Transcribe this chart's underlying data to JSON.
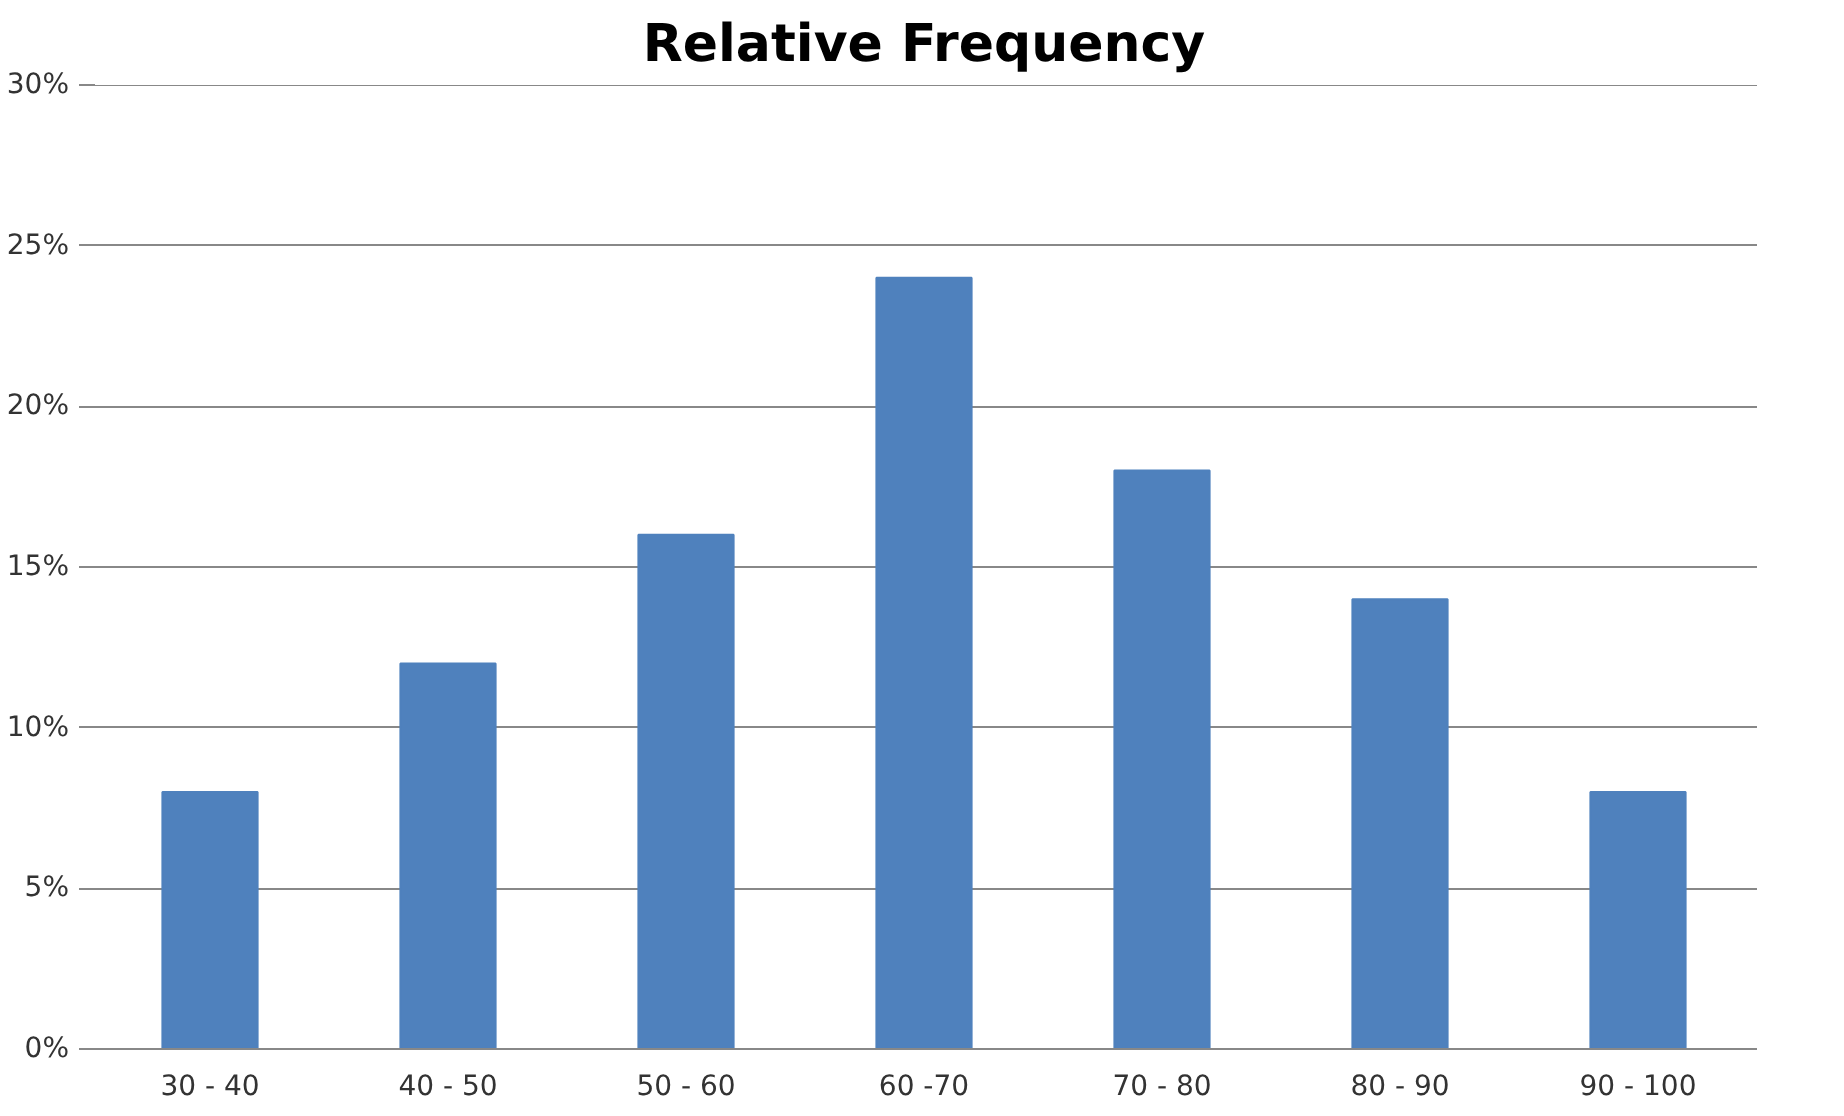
{
  "chart_data": {
    "type": "bar",
    "title": "Relative Frequency",
    "categories": [
      "30 - 40",
      "40 - 50",
      "50 - 60",
      "60 -70",
      "70 - 80",
      "80 - 90",
      "90 - 100"
    ],
    "values": [
      8,
      12,
      16,
      24,
      18,
      14,
      8
    ],
    "color": "#4f81bd",
    "ylim": [
      0,
      30
    ],
    "yticks": [
      {
        "value": 0,
        "label": "0%"
      },
      {
        "value": 5,
        "label": "5%"
      },
      {
        "value": 10,
        "label": "10%"
      },
      {
        "value": 15,
        "label": "15%"
      },
      {
        "value": 20,
        "label": "20%"
      },
      {
        "value": 25,
        "label": "25%"
      },
      {
        "value": 30,
        "label": "30%"
      }
    ],
    "grid": "y"
  }
}
